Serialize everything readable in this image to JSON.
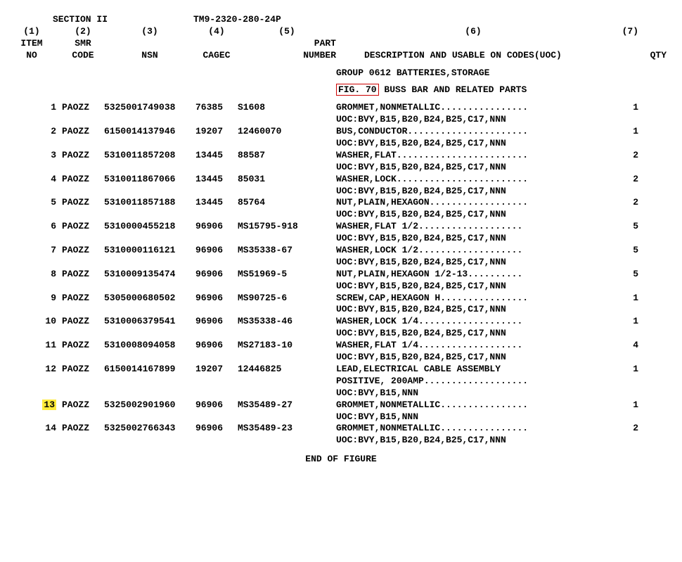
{
  "section": "SECTION II",
  "manual": "TM9-2320-280-24P",
  "hdr_num": {
    "c1": "(1)",
    "c2": "(2)",
    "c3": "(3)",
    "c4": "(4)",
    "c5": "(5)",
    "c6": "(6)",
    "c7": "(7)"
  },
  "hdr_lbl1": {
    "c1": "ITEM",
    "c2": "SMR",
    "c3": "",
    "c4": "",
    "c5": "PART",
    "c6": "",
    "c7": ""
  },
  "hdr_lbl2": {
    "c1": "NO",
    "c2": "CODE",
    "c3": "NSN",
    "c4": "CAGEC",
    "c5": "NUMBER",
    "c6": "DESCRIPTION AND USABLE ON CODES(UOC)",
    "c7": "QTY"
  },
  "group": "GROUP 0612 BATTERIES,STORAGE",
  "fig_link": "FIG. 70",
  "fig_rest": " BUSS BAR AND RELATED PARTS",
  "end": "END OF FIGURE",
  "items": [
    {
      "no": "1",
      "smr": "PAOZZ",
      "nsn": "5325001749038",
      "cage": "76385",
      "part": "S1608",
      "desc": "GROMMET,NONMETALLIC................",
      "qty": "1",
      "uoc": "UOC:BVY,B15,B20,B24,B25,C17,NNN",
      "extra": "",
      "hl": false
    },
    {
      "no": "2",
      "smr": "PAOZZ",
      "nsn": "6150014137946",
      "cage": "19207",
      "part": "12460070",
      "desc": "BUS,CONDUCTOR......................",
      "qty": "1",
      "uoc": "UOC:BVY,B15,B20,B24,B25,C17,NNN",
      "extra": "",
      "hl": false
    },
    {
      "no": "3",
      "smr": "PAOZZ",
      "nsn": "5310011857208",
      "cage": "13445",
      "part": "88587",
      "desc": "WASHER,FLAT........................",
      "qty": "2",
      "uoc": "UOC:BVY,B15,B20,B24,B25,C17,NNN",
      "extra": "",
      "hl": false
    },
    {
      "no": "4",
      "smr": "PAOZZ",
      "nsn": "5310011867066",
      "cage": "13445",
      "part": "85031",
      "desc": "WASHER,LOCK........................",
      "qty": "2",
      "uoc": "UOC:BVY,B15,B20,B24,B25,C17,NNN",
      "extra": "",
      "hl": false
    },
    {
      "no": "5",
      "smr": "PAOZZ",
      "nsn": "5310011857188",
      "cage": "13445",
      "part": "85764",
      "desc": "NUT,PLAIN,HEXAGON..................",
      "qty": "2",
      "uoc": "UOC:BVY,B15,B20,B24,B25,C17,NNN",
      "extra": "",
      "hl": false
    },
    {
      "no": "6",
      "smr": "PAOZZ",
      "nsn": "5310000455218",
      "cage": "96906",
      "part": "MS15795-918",
      "desc": "WASHER,FLAT  1/2...................",
      "qty": "5",
      "uoc": "UOC:BVY,B15,B20,B24,B25,C17,NNN",
      "extra": "",
      "hl": false
    },
    {
      "no": "7",
      "smr": "PAOZZ",
      "nsn": "5310000116121",
      "cage": "96906",
      "part": "MS35338-67",
      "desc": "WASHER,LOCK  1/2...................",
      "qty": "5",
      "uoc": "UOC:BVY,B15,B20,B24,B25,C17,NNN",
      "extra": "",
      "hl": false
    },
    {
      "no": "8",
      "smr": "PAOZZ",
      "nsn": "5310009135474",
      "cage": "96906",
      "part": "MS51969-5",
      "desc": "NUT,PLAIN,HEXAGON  1/2-13..........",
      "qty": "5",
      "uoc": "UOC:BVY,B15,B20,B24,B25,C17,NNN",
      "extra": "",
      "hl": false
    },
    {
      "no": "9",
      "smr": "PAOZZ",
      "nsn": "5305000680502",
      "cage": "96906",
      "part": "MS90725-6",
      "desc": "SCREW,CAP,HEXAGON H................",
      "qty": "1",
      "uoc": "UOC:BVY,B15,B20,B24,B25,C17,NNN",
      "extra": "",
      "hl": false
    },
    {
      "no": "10",
      "smr": "PAOZZ",
      "nsn": "5310006379541",
      "cage": "96906",
      "part": "MS35338-46",
      "desc": "WASHER,LOCK  1/4...................",
      "qty": "1",
      "uoc": "UOC:BVY,B15,B20,B24,B25,C17,NNN",
      "extra": "",
      "hl": false
    },
    {
      "no": "11",
      "smr": "PAOZZ",
      "nsn": "5310008094058",
      "cage": "96906",
      "part": "MS27183-10",
      "desc": "WASHER,FLAT  1/4...................",
      "qty": "4",
      "uoc": "UOC:BVY,B15,B20,B24,B25,C17,NNN",
      "extra": "",
      "hl": false
    },
    {
      "no": "12",
      "smr": "PAOZZ",
      "nsn": "6150014167899",
      "cage": "19207",
      "part": "12446825",
      "desc": "LEAD,ELECTRICAL  CABLE ASSEMBLY",
      "qty": "1",
      "extra": "POSITIVE, 200AMP...................",
      "uoc": "UOC:BVY,B15,NNN",
      "hl": false
    },
    {
      "no": "13",
      "smr": "PAOZZ",
      "nsn": "5325002901960",
      "cage": "96906",
      "part": "MS35489-27",
      "desc": "GROMMET,NONMETALLIC................",
      "qty": "1",
      "uoc": "UOC:BVY,B15,NNN",
      "extra": "",
      "hl": true
    },
    {
      "no": "14",
      "smr": "PAOZZ",
      "nsn": "5325002766343",
      "cage": "96906",
      "part": "MS35489-23",
      "desc": "GROMMET,NONMETALLIC................",
      "qty": "2",
      "uoc": "UOC:BVY,B15,B20,B24,B25,C17,NNN",
      "extra": "",
      "hl": false
    }
  ]
}
